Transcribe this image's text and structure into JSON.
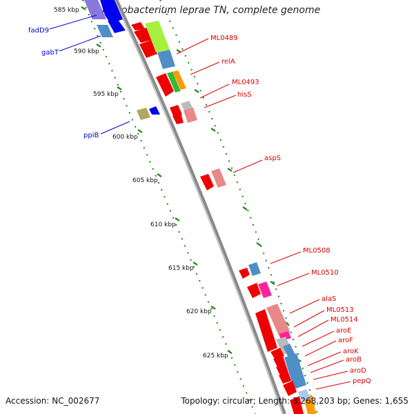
{
  "title": "Mycobacterium leprae TN, complete genome",
  "footer": {
    "accession": "Accession: NC_002677",
    "summary": "Topology: circular; Length: 3,268,203 bp; Genes: 1,655"
  },
  "colors": {
    "ruler": "#2d8a1f",
    "backbone": "#8a8a8a",
    "forward_label": "#0000cc",
    "reverse_label": "#dd0000",
    "cds_arrow": "#ee0000",
    "cog_blue": "#4f8fc6",
    "cog_lightgreen": "#a8f040",
    "cog_green": "#33bb33",
    "cog_orange": "#ff9900",
    "cog_grey": "#bbbbbb",
    "cog_pink": "#e88888",
    "cog_magenta": "#ff2299",
    "cog_khaki": "#b0a860",
    "cog_purple": "#8877dd"
  },
  "ruler_ticks": [
    "585 kbp",
    "590 kbp",
    "595 kbp",
    "600 kbp",
    "605 kbp",
    "610 kbp",
    "615 kbp",
    "620 kbp",
    "625 kbp"
  ],
  "forward_genes": [
    "fadD9",
    "gabT",
    "ppiB"
  ],
  "reverse_genes": [
    "ML0489",
    "relA",
    "ML0493",
    "hisS",
    "aspS",
    "ML0508",
    "ML0510",
    "alaS",
    "ML0513",
    "ML0514",
    "aroE",
    "aroF",
    "aroK",
    "aroB",
    "aroD",
    "pepQ"
  ]
}
